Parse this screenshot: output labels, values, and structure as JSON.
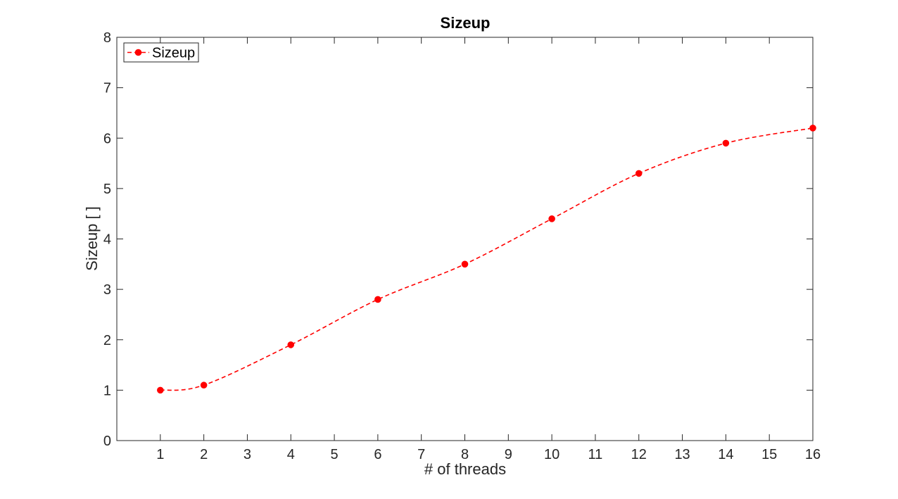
{
  "chart_data": {
    "type": "line",
    "title": "Sizeup",
    "xlabel": "# of threads",
    "ylabel": "Sizeup [ ]",
    "xlim": [
      0,
      16
    ],
    "ylim": [
      0,
      8
    ],
    "xticks": [
      1,
      2,
      3,
      4,
      5,
      6,
      7,
      8,
      9,
      10,
      11,
      12,
      13,
      14,
      15,
      16
    ],
    "yticks": [
      0,
      1,
      2,
      3,
      4,
      5,
      6,
      7,
      8
    ],
    "grid": false,
    "legend_position": "top-left",
    "series": [
      {
        "name": "Sizeup",
        "color": "#ff0000",
        "line_style": "dashed",
        "marker": "circle",
        "x": [
          1,
          2,
          4,
          6,
          8,
          10,
          12,
          14,
          16
        ],
        "y": [
          1.0,
          1.1,
          1.9,
          2.8,
          3.5,
          4.4,
          5.3,
          5.9,
          6.2
        ]
      }
    ]
  }
}
